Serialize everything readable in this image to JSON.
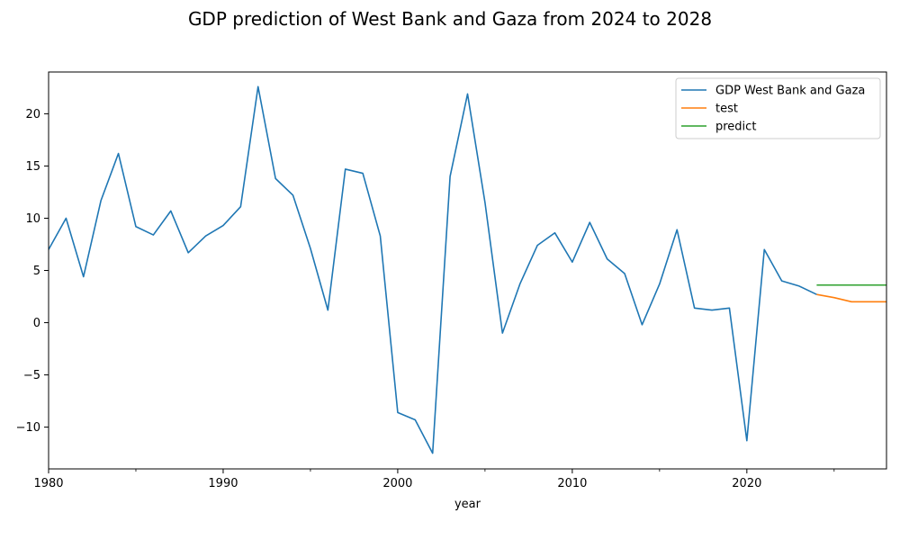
{
  "chart_data": {
    "type": "line",
    "title": "GDP prediction of West Bank and Gaza from 2024 to 2028",
    "xlabel": "year",
    "ylabel": "",
    "xlim": [
      1980,
      2028
    ],
    "ylim": [
      -14,
      24
    ],
    "xticks": [
      1980,
      1990,
      2000,
      2010,
      2020
    ],
    "xtick_labels": [
      "1980",
      "1990",
      "2000",
      "2010",
      "2020"
    ],
    "yticks": [
      -10,
      -5,
      0,
      5,
      10,
      15,
      20
    ],
    "ytick_labels": [
      "−10",
      "−5",
      "0",
      "5",
      "10",
      "15",
      "20"
    ],
    "grid": false,
    "legend_position": "top-right",
    "series": [
      {
        "name": "GDP West Bank and Gaza",
        "color": "#1f77b4",
        "x": [
          1980,
          1981,
          1982,
          1983,
          1984,
          1985,
          1986,
          1987,
          1988,
          1989,
          1990,
          1991,
          1992,
          1993,
          1994,
          1995,
          1996,
          1997,
          1998,
          1999,
          2000,
          2001,
          2002,
          2003,
          2004,
          2005,
          2006,
          2007,
          2008,
          2009,
          2010,
          2011,
          2012,
          2013,
          2014,
          2015,
          2016,
          2017,
          2018,
          2019,
          2020,
          2021,
          2022,
          2023,
          2024
        ],
        "y": [
          7.0,
          10.0,
          4.4,
          11.7,
          16.2,
          9.2,
          8.4,
          10.7,
          6.7,
          8.3,
          9.3,
          11.1,
          22.6,
          13.8,
          12.2,
          7.1,
          1.2,
          14.7,
          14.3,
          8.3,
          -8.6,
          -9.3,
          -12.5,
          14.0,
          21.9,
          11.5,
          -1.0,
          3.7,
          7.4,
          8.6,
          5.8,
          9.6,
          6.1,
          4.7,
          -0.2,
          3.7,
          8.9,
          1.4,
          1.2,
          1.4,
          -11.3,
          7.0,
          4.0,
          3.5,
          2.7
        ]
      },
      {
        "name": "test",
        "color": "#ff7f0e",
        "x": [
          2024,
          2025,
          2026,
          2027,
          2028
        ],
        "y": [
          2.7,
          2.4,
          2.0,
          2.0,
          2.0
        ]
      },
      {
        "name": "predict",
        "color": "#2ca02c",
        "x": [
          2024,
          2025,
          2026,
          2027,
          2028
        ],
        "y": [
          3.6,
          3.6,
          3.6,
          3.6,
          3.6
        ]
      }
    ]
  }
}
